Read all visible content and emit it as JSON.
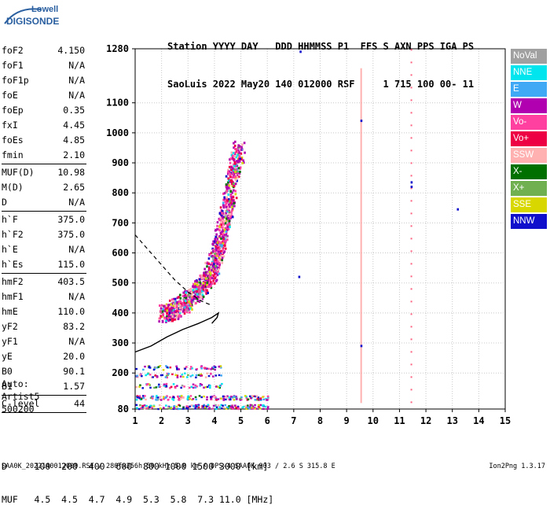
{
  "logo": {
    "line1": "Lowell",
    "line2": "DIGISONDE"
  },
  "header": {
    "line1": "Station YYYY DAY   DDD HHMMSS P1  FFS S AXN PPS IGA PS",
    "line2": "SaoLuis 2022 May20 140 012000 RSF     1 715 100 00- 11"
  },
  "params": {
    "group1": [
      {
        "name": "foF2",
        "value": "4.150"
      },
      {
        "name": "foF1",
        "value": "N/A"
      },
      {
        "name": "foF1p",
        "value": "N/A"
      },
      {
        "name": "foE",
        "value": "N/A"
      },
      {
        "name": "foEp",
        "value": "0.35"
      },
      {
        "name": "fxI",
        "value": "4.45"
      },
      {
        "name": "foEs",
        "value": "4.85"
      },
      {
        "name": "fmin",
        "value": "2.10"
      }
    ],
    "group2": [
      {
        "name": "MUF(D)",
        "value": "10.98"
      },
      {
        "name": "M(D)",
        "value": "2.65"
      },
      {
        "name": "D",
        "value": "N/A"
      }
    ],
    "group3": [
      {
        "name": "h`F",
        "value": "375.0"
      },
      {
        "name": "h`F2",
        "value": "375.0"
      },
      {
        "name": "h`E",
        "value": "N/A"
      },
      {
        "name": "h`Es",
        "value": "115.0"
      }
    ],
    "group4": [
      {
        "name": "hmF2",
        "value": "403.5"
      },
      {
        "name": "hmF1",
        "value": "N/A"
      },
      {
        "name": "hmE",
        "value": "110.0"
      },
      {
        "name": "yF2",
        "value": "83.2"
      },
      {
        "name": "yF1",
        "value": "N/A"
      },
      {
        "name": "yE",
        "value": "20.0"
      },
      {
        "name": "B0",
        "value": "90.1"
      },
      {
        "name": "B1",
        "value": "1.57"
      }
    ],
    "group5": [
      {
        "name": "C-level",
        "value": "44"
      }
    ]
  },
  "auto": {
    "line1": "Auto:",
    "line2": "Artist5",
    "line3": "500200"
  },
  "legend": [
    {
      "label": "NoVal",
      "color": "#a0a0a0"
    },
    {
      "label": "NNE",
      "color": "#00e5ee"
    },
    {
      "label": "E",
      "color": "#3fa9f5"
    },
    {
      "label": "W",
      "color": "#b000b0"
    },
    {
      "label": "Vo-",
      "color": "#ff40a0"
    },
    {
      "label": "Vo+",
      "color": "#ee0044"
    },
    {
      "label": "SSW",
      "color": "#ffb0b0"
    },
    {
      "label": "X-",
      "color": "#007000"
    },
    {
      "label": "X+",
      "color": "#70b050"
    },
    {
      "label": "SSE",
      "color": "#d8d800"
    },
    {
      "label": "NNW",
      "color": "#1010cc"
    }
  ],
  "dmuf": {
    "d_row": "D     100  200  400  600  800 1000 1500 3000 [km]",
    "muf_row": "MUF   4.5  4.5  4.7  4.9  5.3  5.8  7.3 11.0 [MHz]"
  },
  "footer": "SAA0K_2022140012000.RSF / 280fx256h 50 kHz 5.0 km / DPS-4 SAA0K 903 / 2.6 S 315.8 E",
  "version": "Ion2Png 1.3.17",
  "chart_data": {
    "type": "scatter",
    "x_ticks": [
      1,
      2,
      3,
      4,
      5,
      6,
      7,
      8,
      9,
      10,
      11,
      12,
      13,
      14,
      15
    ],
    "y_ticks": [
      80,
      200,
      300,
      400,
      500,
      600,
      700,
      800,
      900,
      1000,
      1100,
      1280
    ],
    "xlim": [
      1,
      15
    ],
    "ylim": [
      80,
      1280
    ],
    "grid": true,
    "f_trace_center": [
      [
        2.0,
        385
      ],
      [
        2.4,
        400
      ],
      [
        2.8,
        420
      ],
      [
        3.2,
        450
      ],
      [
        3.6,
        490
      ],
      [
        3.9,
        540
      ],
      [
        4.1,
        600
      ],
      [
        4.3,
        680
      ],
      [
        4.5,
        760
      ],
      [
        4.7,
        860
      ],
      [
        4.9,
        940
      ]
    ],
    "profile_solid": [
      [
        1.0,
        270
      ],
      [
        1.6,
        290
      ],
      [
        2.2,
        320
      ],
      [
        2.8,
        345
      ],
      [
        3.4,
        365
      ],
      [
        3.9,
        385
      ],
      [
        4.15,
        400
      ],
      [
        4.1,
        385
      ],
      [
        3.9,
        365
      ]
    ],
    "profile_dashed": [
      [
        1.0,
        660
      ],
      [
        1.5,
        610
      ],
      [
        2.0,
        560
      ],
      [
        2.5,
        510
      ],
      [
        3.0,
        470
      ],
      [
        3.5,
        440
      ],
      [
        3.9,
        425
      ]
    ],
    "es_layer": {
      "x_range": [
        1.0,
        6.0
      ],
      "heights": [
        90,
        120,
        160,
        195,
        220
      ]
    },
    "vertical_lines": [
      {
        "x": 9.55,
        "y_range": [
          100,
          1215
        ]
      },
      {
        "x": 11.45,
        "y_range": [
          100,
          1280
        ]
      }
    ],
    "isolated_points": [
      [
        7.25,
        1270
      ],
      [
        7.2,
        520
      ],
      [
        13.2,
        745
      ],
      [
        11.45,
        820
      ],
      [
        11.45,
        835
      ],
      [
        9.55,
        1040
      ],
      [
        9.55,
        290
      ]
    ]
  }
}
